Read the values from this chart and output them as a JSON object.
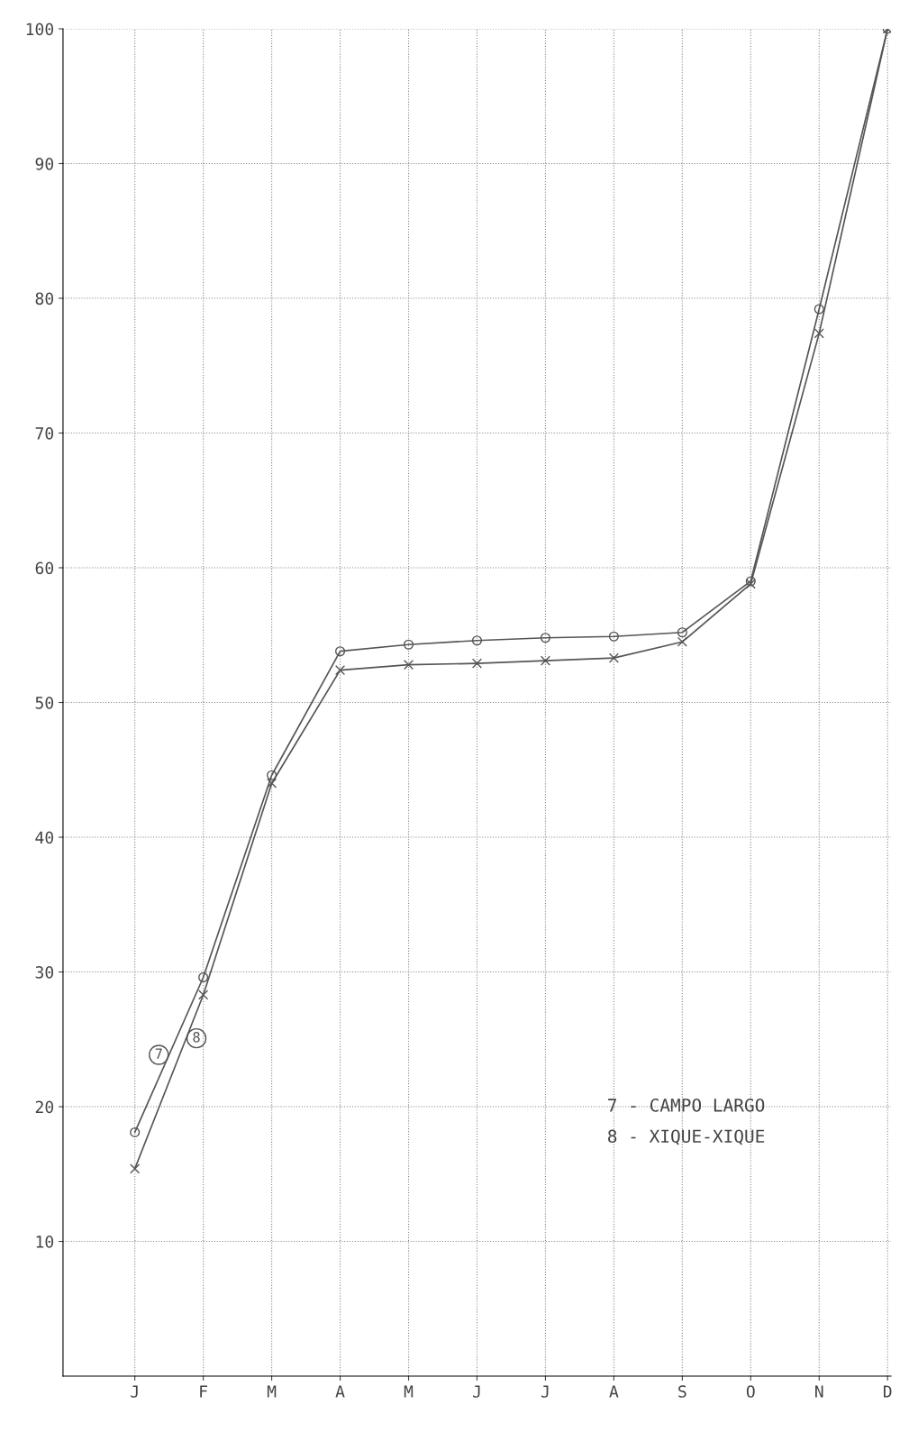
{
  "chart_data": {
    "type": "line",
    "categories": [
      "J",
      "F",
      "M",
      "A",
      "M",
      "J",
      "J",
      "A",
      "S",
      "O",
      "N",
      "D"
    ],
    "series": [
      {
        "name": "7",
        "color": "#555555",
        "marker": "circle",
        "values": [
          18.1,
          29.6,
          44.6,
          53.8,
          54.3,
          54.6,
          54.8,
          54.9,
          55.2,
          59.0,
          79.2,
          100
        ]
      },
      {
        "name": "8",
        "color": "#555555",
        "marker": "cross",
        "values": [
          15.4,
          28.3,
          44.0,
          52.4,
          52.8,
          52.9,
          53.1,
          53.3,
          54.5,
          58.8,
          77.4,
          100
        ]
      }
    ],
    "ylim": [
      0,
      100
    ],
    "yticks": [
      10,
      20,
      30,
      40,
      50,
      60,
      70,
      80,
      90,
      100
    ],
    "grid": true,
    "annotations": [
      "7 - CAMPO LARGO",
      "8 - XIQUE-XIQUE"
    ]
  }
}
